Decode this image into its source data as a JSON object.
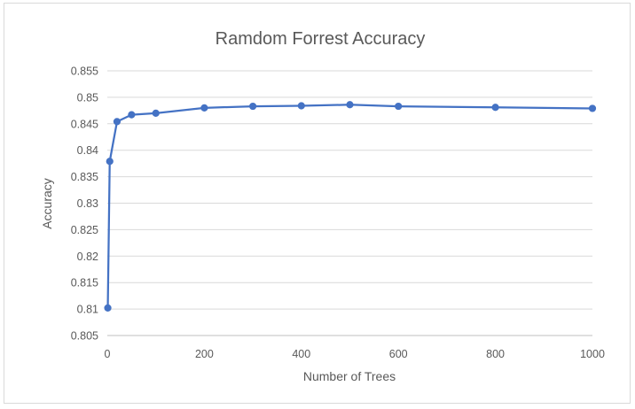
{
  "chart_data": {
    "type": "scatter",
    "title": "Ramdom Forrest Accuracy",
    "xlabel": "Number of Trees",
    "ylabel": "Accuracy",
    "xlim": [
      0,
      1000
    ],
    "ylim": [
      0.805,
      0.855
    ],
    "x_ticks": [
      0,
      200,
      400,
      600,
      800,
      1000
    ],
    "x_tick_labels": [
      "0",
      "200",
      "400",
      "600",
      "800",
      "1000"
    ],
    "y_ticks": [
      0.805,
      0.81,
      0.815,
      0.82,
      0.825,
      0.83,
      0.835,
      0.84,
      0.845,
      0.85,
      0.855
    ],
    "y_tick_labels": [
      "0.805",
      "0.81",
      "0.815",
      "0.82",
      "0.825",
      "0.83",
      "0.835",
      "0.84",
      "0.845",
      "0.85",
      "0.855"
    ],
    "grid": true,
    "legend": "none",
    "line_color": "#4472c4",
    "series": [
      {
        "x": [
          1,
          5,
          20,
          50,
          100,
          200,
          300,
          400,
          500,
          600,
          800,
          1000
        ],
        "y": [
          0.8102,
          0.8379,
          0.8454,
          0.8467,
          0.847,
          0.848,
          0.8483,
          0.8484,
          0.8486,
          0.8483,
          0.8481,
          0.8479
        ],
        "markers": true
      }
    ]
  }
}
